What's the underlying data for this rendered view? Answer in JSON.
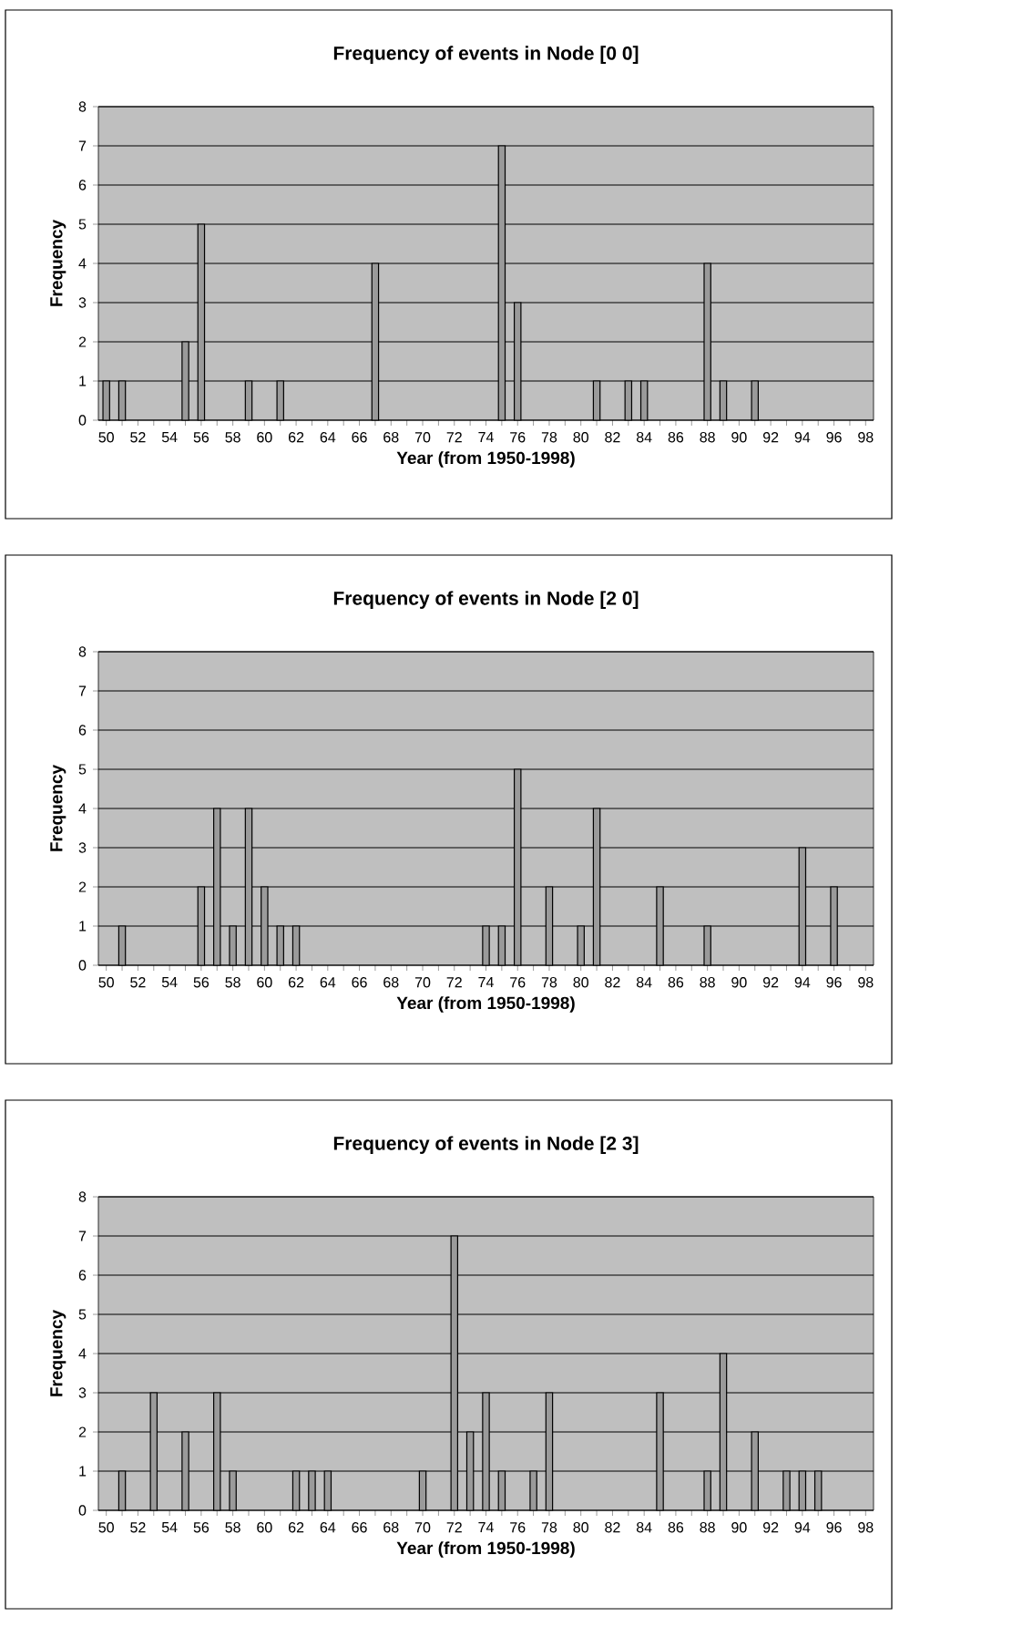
{
  "chart_data": [
    {
      "type": "bar",
      "title": "Frequency of events in Node [0 0]",
      "xlabel": "Year (from 1950-1998)",
      "ylabel": "Frequency",
      "categories": [
        "50",
        null,
        "52",
        null,
        "54",
        null,
        "56",
        null,
        "58",
        null,
        "60",
        null,
        "62",
        null,
        "64",
        null,
        "66",
        null,
        "68",
        null,
        "70",
        null,
        "72",
        null,
        "74",
        null,
        "76",
        null,
        "78",
        null,
        "80",
        null,
        "82",
        null,
        "84",
        null,
        "86",
        null,
        "88",
        null,
        "90",
        null,
        "92",
        null,
        "94",
        null,
        "96",
        null,
        "98"
      ],
      "values": [
        1,
        1,
        0,
        0,
        0,
        2,
        5,
        0,
        0,
        1,
        0,
        1,
        0,
        0,
        0,
        0,
        0,
        4,
        0,
        0,
        0,
        0,
        0,
        0,
        0,
        7,
        3,
        0,
        0,
        0,
        0,
        1,
        0,
        1,
        1,
        0,
        0,
        0,
        4,
        1,
        0,
        1,
        0,
        0,
        0,
        0,
        0,
        0,
        0
      ],
      "color": "#9a9a9a",
      "ylim": [
        0,
        8
      ],
      "yticks": [
        0,
        1,
        2,
        3,
        4,
        5,
        6,
        7,
        8
      ],
      "grid": "y"
    },
    {
      "type": "bar",
      "title": "Frequency of events in Node [2 0]",
      "xlabel": "Year (from 1950-1998)",
      "ylabel": "Frequency",
      "categories": [
        "50",
        null,
        "52",
        null,
        "54",
        null,
        "56",
        null,
        "58",
        null,
        "60",
        null,
        "62",
        null,
        "64",
        null,
        "66",
        null,
        "68",
        null,
        "70",
        null,
        "72",
        null,
        "74",
        null,
        "76",
        null,
        "78",
        null,
        "80",
        null,
        "82",
        null,
        "84",
        null,
        "86",
        null,
        "88",
        null,
        "90",
        null,
        "92",
        null,
        "94",
        null,
        "96",
        null,
        "98"
      ],
      "values": [
        0,
        1,
        0,
        0,
        0,
        0,
        2,
        4,
        1,
        4,
        2,
        1,
        1,
        0,
        0,
        0,
        0,
        0,
        0,
        0,
        0,
        0,
        0,
        0,
        1,
        1,
        5,
        0,
        2,
        0,
        1,
        4,
        0,
        0,
        0,
        2,
        0,
        0,
        1,
        0,
        0,
        0,
        0,
        0,
        3,
        0,
        2,
        0,
        0
      ],
      "color": "#9a9a9a",
      "ylim": [
        0,
        8
      ],
      "yticks": [
        0,
        1,
        2,
        3,
        4,
        5,
        6,
        7,
        8
      ],
      "grid": "y"
    },
    {
      "type": "bar",
      "title": "Frequency of events in Node [2 3]",
      "xlabel": "Year (from 1950-1998)",
      "ylabel": "Frequency",
      "categories": [
        "50",
        null,
        "52",
        null,
        "54",
        null,
        "56",
        null,
        "58",
        null,
        "60",
        null,
        "62",
        null,
        "64",
        null,
        "66",
        null,
        "68",
        null,
        "70",
        null,
        "72",
        null,
        "74",
        null,
        "76",
        null,
        "78",
        null,
        "80",
        null,
        "82",
        null,
        "84",
        null,
        "86",
        null,
        "88",
        null,
        "90",
        null,
        "92",
        null,
        "94",
        null,
        "96",
        null,
        "98"
      ],
      "values": [
        0,
        1,
        0,
        3,
        0,
        2,
        0,
        3,
        1,
        0,
        0,
        0,
        1,
        1,
        1,
        0,
        0,
        0,
        0,
        0,
        1,
        0,
        7,
        2,
        3,
        1,
        0,
        1,
        3,
        0,
        0,
        0,
        0,
        0,
        0,
        3,
        0,
        0,
        1,
        4,
        0,
        2,
        0,
        1,
        1,
        1,
        0,
        0,
        0
      ],
      "color": "#9a9a9a",
      "ylim": [
        0,
        8
      ],
      "yticks": [
        0,
        1,
        2,
        3,
        4,
        5,
        6,
        7,
        8
      ],
      "grid": "y"
    }
  ]
}
